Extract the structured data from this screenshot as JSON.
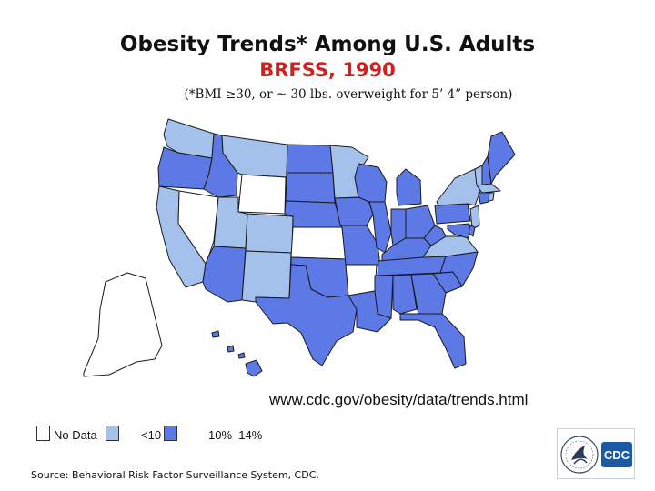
{
  "title": "Obesity Trends* Among U.S. Adults",
  "subtitle": "BRFSS, 1990",
  "note": "(*BMI ≥30, or ~ 30 lbs. overweight for 5’ 4” person)",
  "url": "www.cdc.gov/obesity/data/trends.html",
  "source": "Source: Behavioral Risk Factor Surveillance System, CDC.",
  "logo_text": "CDC",
  "colors": {
    "no_data": "#ffffff",
    "lt10": "#a4c1ec",
    "10_14": "#5d79e6",
    "border": "#1a1a1a"
  },
  "legend": [
    {
      "label": "No Data",
      "category": "no_data"
    },
    {
      "label": "<10",
      "category": "lt10"
    },
    {
      "label": "10%–14%",
      "category": "10_14"
    }
  ],
  "states": {
    "WA": "lt10",
    "OR": "10_14",
    "CA": "lt10",
    "NV": "no_data",
    "ID": "10_14",
    "MT": "lt10",
    "WY": "no_data",
    "UT": "lt10",
    "CO": "lt10",
    "AZ": "10_14",
    "NM": "lt10",
    "ND": "10_14",
    "SD": "10_14",
    "NE": "10_14",
    "KS": "no_data",
    "OK": "10_14",
    "TX": "10_14",
    "MN": "lt10",
    "IA": "10_14",
    "MO": "10_14",
    "AR": "no_data",
    "LA": "10_14",
    "WI": "10_14",
    "IL": "10_14",
    "MI": "10_14",
    "IN": "10_14",
    "OH": "10_14",
    "KY": "10_14",
    "TN": "10_14",
    "MS": "10_14",
    "AL": "10_14",
    "GA": "10_14",
    "FL": "10_14",
    "SC": "10_14",
    "NC": "10_14",
    "VA": "lt10",
    "WV": "10_14",
    "PA": "10_14",
    "NY": "lt10",
    "VT": "lt10",
    "NH": "10_14",
    "ME": "10_14",
    "MA": "lt10",
    "CT": "10_14",
    "RI": "lt10",
    "NJ": "lt10",
    "DE": "10_14",
    "MD": "10_14",
    "AK": "no_data",
    "HI": "10_14"
  }
}
